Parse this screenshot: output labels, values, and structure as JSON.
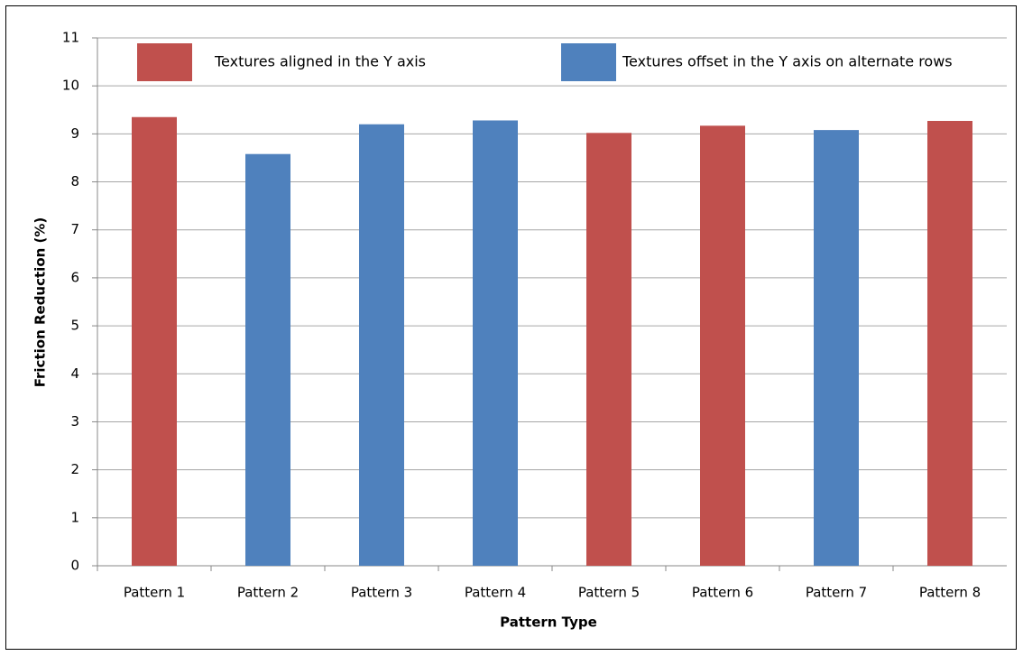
{
  "chart_data": {
    "type": "bar",
    "y_label": "Friction Reduction (%)",
    "x_label": "Pattern Type",
    "categories": [
      "Pattern 1",
      "Pattern 2",
      "Pattern 3",
      "Pattern 4",
      "Pattern 5",
      "Pattern 6",
      "Pattern 7",
      "Pattern 8"
    ],
    "series": [
      {
        "name": "Textures aligned in the Y axis",
        "color": "#c0504d",
        "values": [
          9.35,
          null,
          null,
          null,
          9.02,
          9.17,
          null,
          9.27
        ]
      },
      {
        "name": "Textures offset in the Y axis on alternate rows",
        "color": "#4f81bd",
        "values": [
          null,
          8.58,
          9.2,
          9.28,
          null,
          null,
          9.08,
          null
        ]
      }
    ],
    "ylim": [
      0,
      11
    ],
    "yticks": [
      0,
      1,
      2,
      3,
      4,
      5,
      6,
      7,
      8,
      9,
      10,
      11
    ],
    "grid": true
  }
}
